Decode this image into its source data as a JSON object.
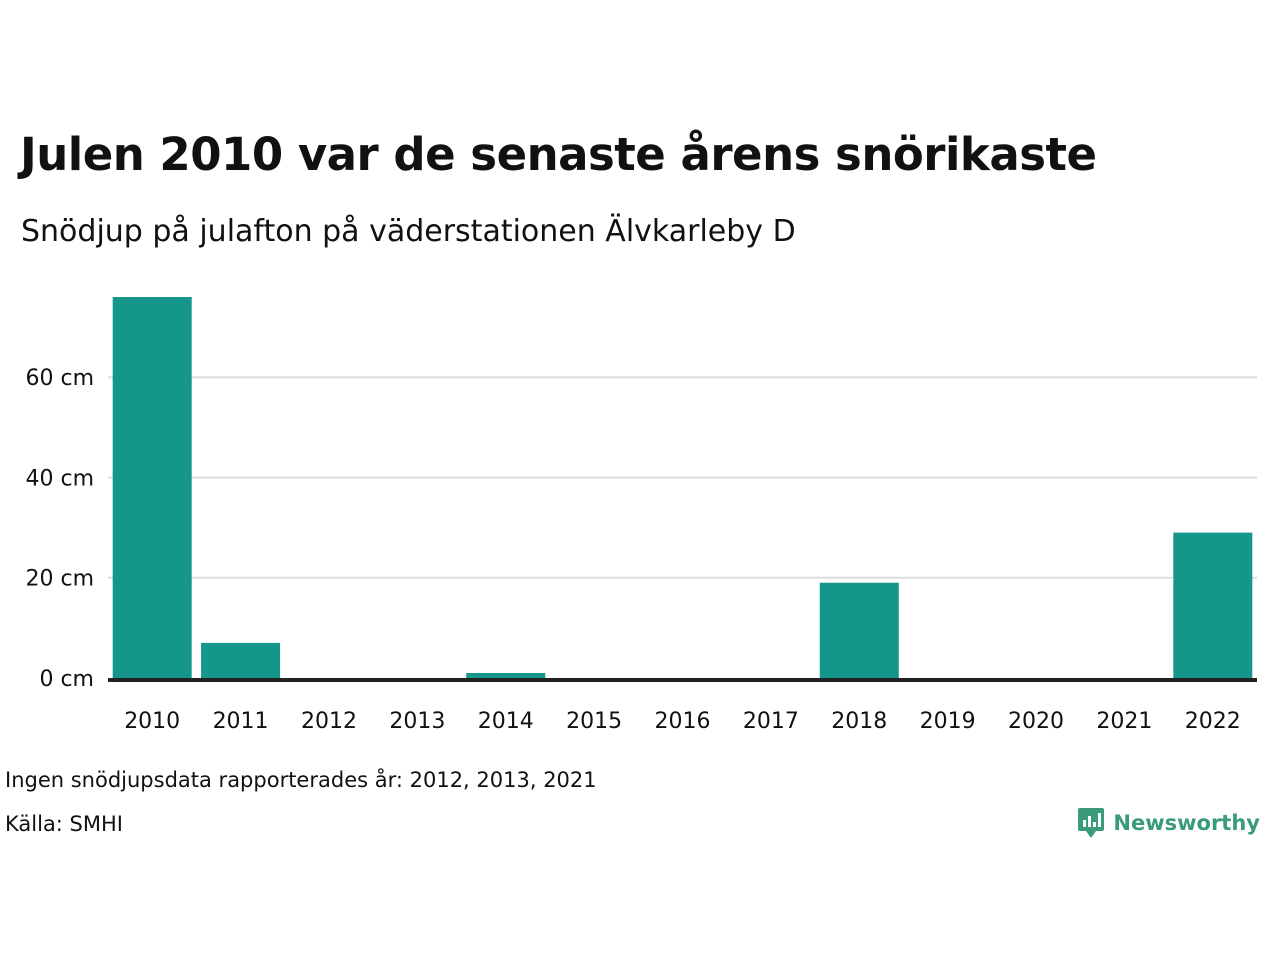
{
  "header": {
    "title": "Julen 2010 var de senaste årens snörikaste",
    "subtitle": "Snödjup på julafton på väderstationen Älvkarleby D"
  },
  "footer": {
    "note": "Ingen snödjupsdata rapporterades år: 2012, 2013, 2021",
    "source": "Källa: SMHI",
    "brand": "Newsworthy"
  },
  "colors": {
    "bar": "#14968a",
    "brand": "#3a9a7c",
    "grid": "#dddddd",
    "baseline": "#222222"
  },
  "chart_data": {
    "type": "bar",
    "title": "Julen 2010 var de senaste årens snörikaste",
    "subtitle": "Snödjup på julafton på väderstationen Älvkarleby D",
    "xlabel": "",
    "ylabel": "",
    "categories": [
      "2010",
      "2011",
      "2012",
      "2013",
      "2014",
      "2015",
      "2016",
      "2017",
      "2018",
      "2019",
      "2020",
      "2021",
      "2022"
    ],
    "values": [
      76,
      7,
      null,
      null,
      1,
      0,
      0,
      0,
      19,
      0,
      0,
      null,
      29
    ],
    "ylim": [
      0,
      76
    ],
    "yticks": [
      0,
      20,
      40,
      60
    ],
    "ytick_labels": [
      "0 cm",
      "20 cm",
      "40 cm",
      "60 cm"
    ],
    "grid": true,
    "legend": "none"
  }
}
